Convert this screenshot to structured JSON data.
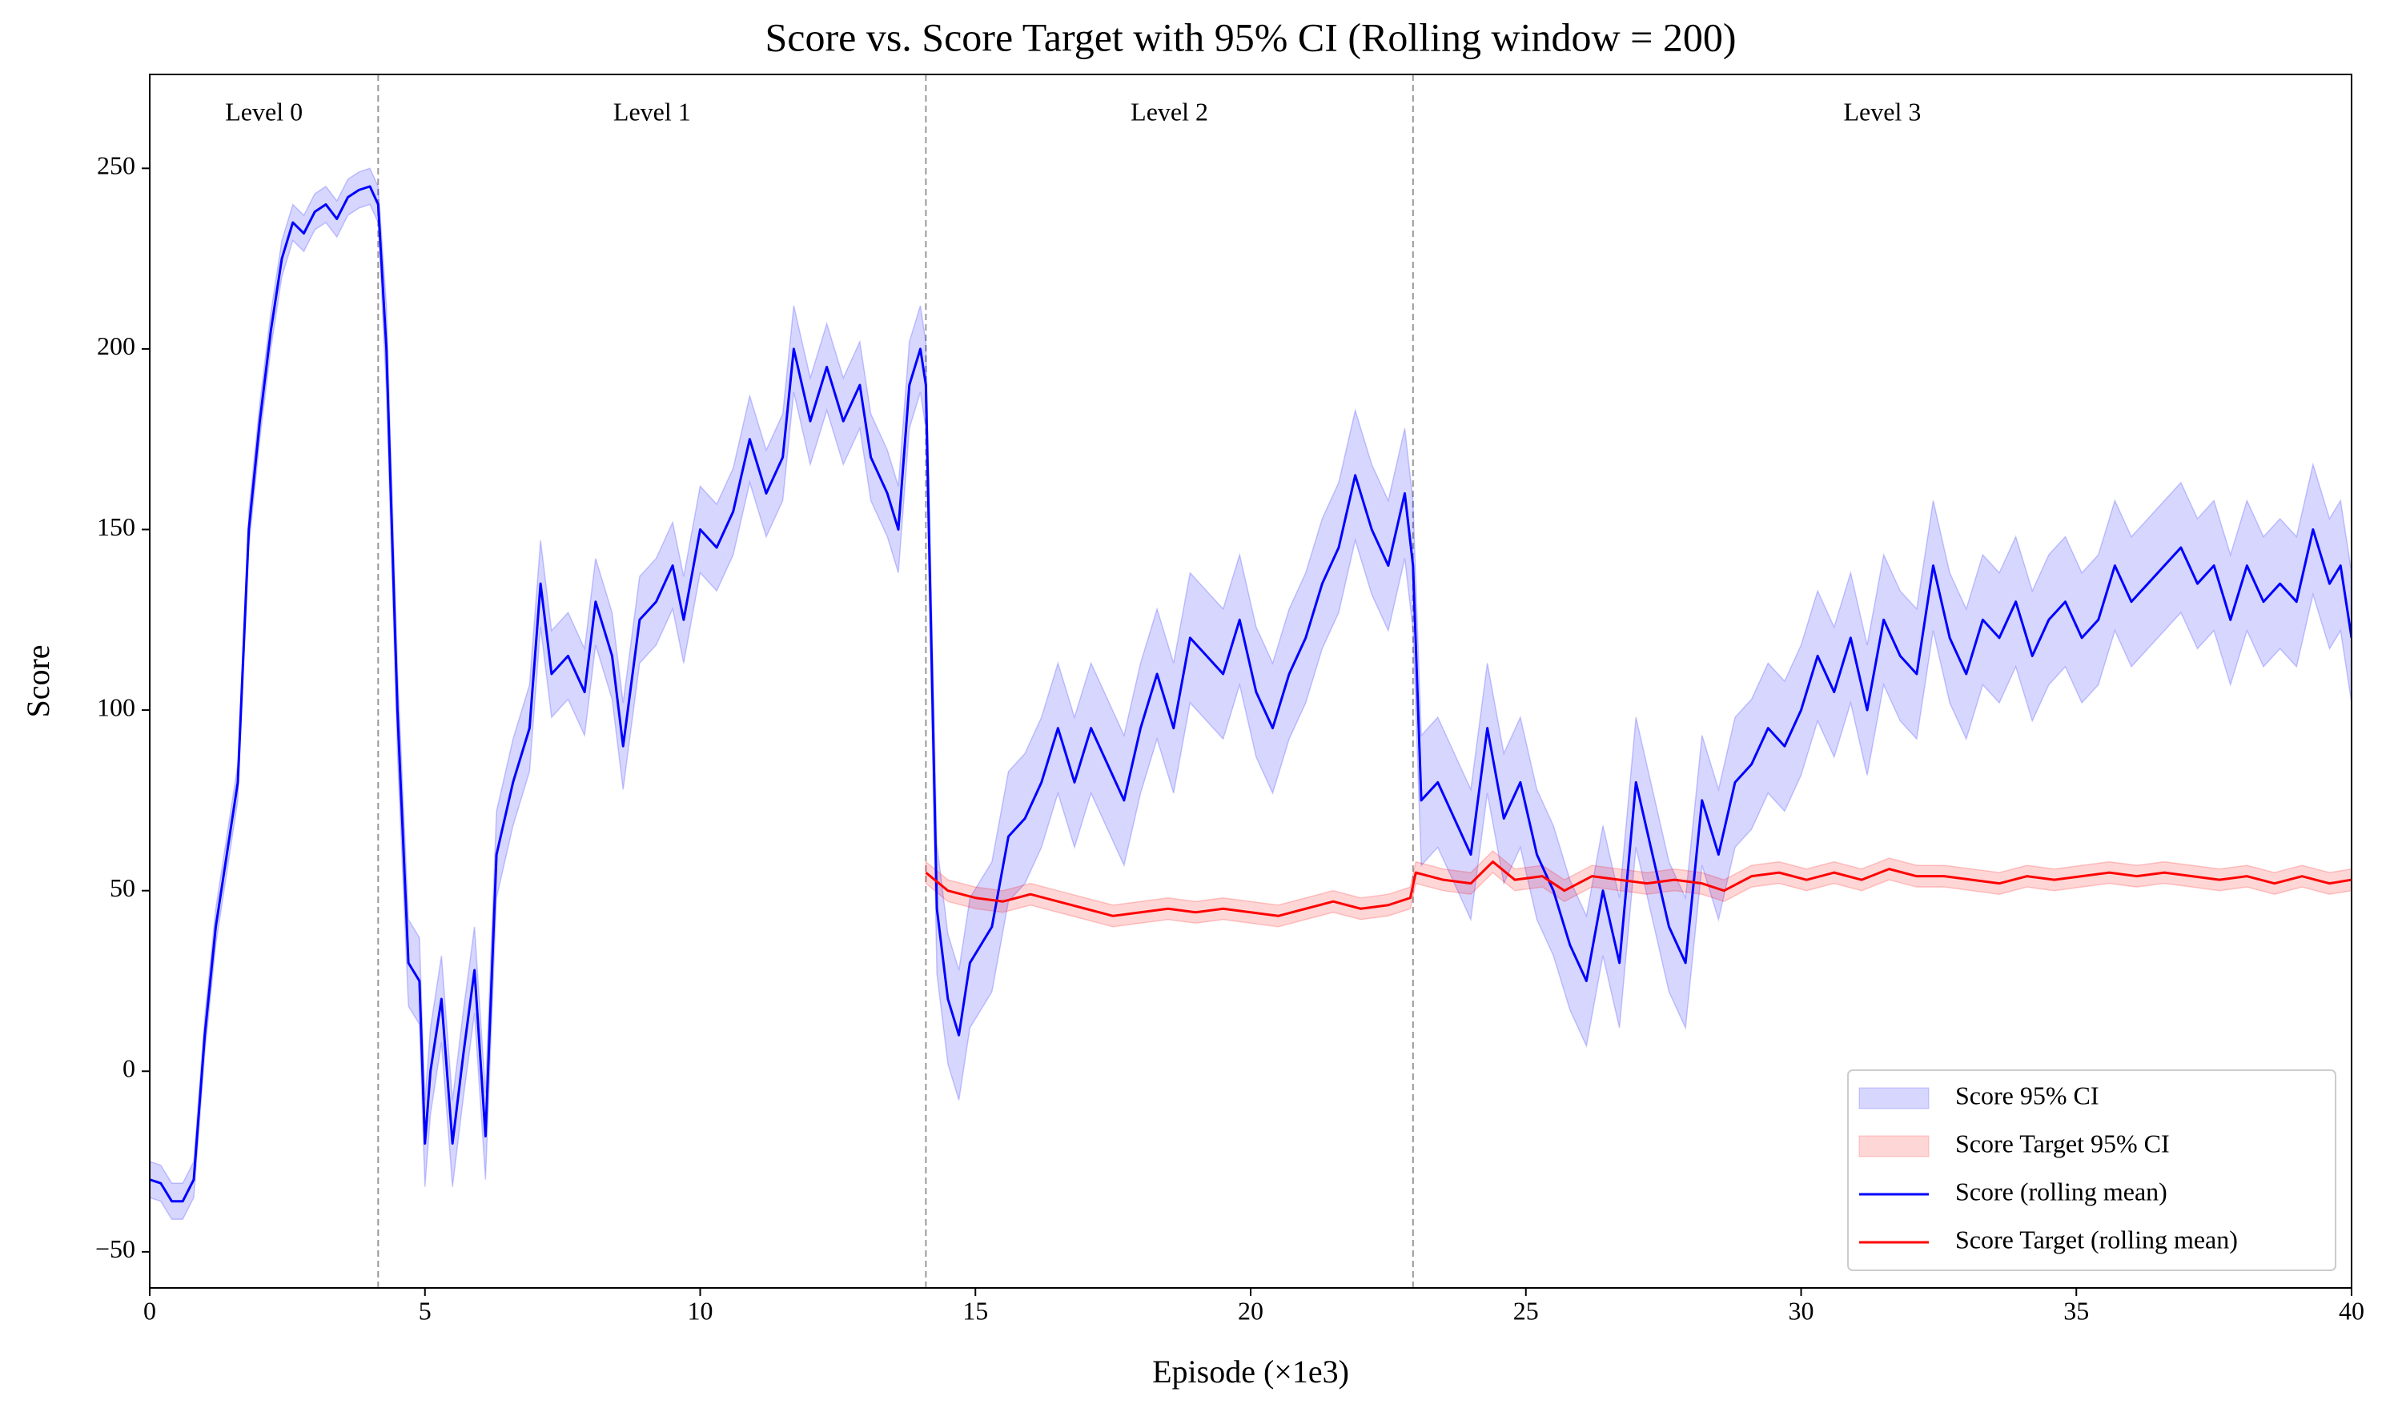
{
  "chart_data": {
    "type": "line",
    "title": "Score vs. Score Target with 95% CI (Rolling window = 200)",
    "xlabel": "Episode (×1e3)",
    "ylabel": "Score",
    "xlim": [
      0,
      40
    ],
    "ylim": [
      -60,
      276
    ],
    "xticks": [
      0,
      5,
      10,
      15,
      20,
      25,
      30,
      35,
      40
    ],
    "yticks": [
      {
        "value": -50,
        "label": "−50"
      },
      0,
      50,
      100,
      150,
      200,
      250
    ],
    "grid": false,
    "legend_loc": "lower right",
    "level_boundaries": [
      4.15,
      14.1,
      22.95
    ],
    "level_labels": [
      "Level 0",
      "Level 1",
      "Level 2",
      "Level 3"
    ],
    "series": [
      {
        "name": "Score (rolling mean)",
        "color": "#0000ff",
        "ci_name": "Score 95% CI",
        "ci_color": "#0000ff",
        "x": [
          0,
          0.2,
          0.4,
          0.6,
          0.8,
          1.0,
          1.2,
          1.4,
          1.6,
          1.8,
          2.0,
          2.2,
          2.4,
          2.6,
          2.8,
          3.0,
          3.2,
          3.4,
          3.6,
          3.8,
          4.0,
          4.15,
          4.3,
          4.5,
          4.7,
          4.9,
          5.0,
          5.1,
          5.3,
          5.5,
          5.7,
          5.9,
          6.1,
          6.3,
          6.6,
          6.9,
          7.1,
          7.3,
          7.6,
          7.9,
          8.1,
          8.4,
          8.6,
          8.9,
          9.2,
          9.5,
          9.7,
          10.0,
          10.3,
          10.6,
          10.9,
          11.2,
          11.5,
          11.7,
          12.0,
          12.3,
          12.6,
          12.9,
          13.1,
          13.4,
          13.6,
          13.8,
          14.0,
          14.1,
          14.3,
          14.5,
          14.7,
          14.9,
          15.1,
          15.3,
          15.6,
          15.9,
          16.2,
          16.5,
          16.8,
          17.1,
          17.4,
          17.7,
          18.0,
          18.3,
          18.6,
          18.9,
          19.2,
          19.5,
          19.8,
          20.1,
          20.4,
          20.7,
          21.0,
          21.3,
          21.6,
          21.9,
          22.2,
          22.5,
          22.8,
          22.95,
          23.1,
          23.4,
          23.7,
          24.0,
          24.3,
          24.6,
          24.9,
          25.2,
          25.5,
          25.8,
          26.1,
          26.4,
          26.7,
          27.0,
          27.3,
          27.6,
          27.9,
          28.2,
          28.5,
          28.8,
          29.1,
          29.4,
          29.7,
          30.0,
          30.3,
          30.6,
          30.9,
          31.2,
          31.5,
          31.8,
          32.1,
          32.4,
          32.7,
          33.0,
          33.3,
          33.6,
          33.9,
          34.2,
          34.5,
          34.8,
          35.1,
          35.4,
          35.7,
          36.0,
          36.3,
          36.6,
          36.9,
          37.2,
          37.5,
          37.8,
          38.1,
          38.4,
          38.7,
          39.0,
          39.3,
          39.6,
          39.8,
          40
        ],
        "values": [
          -30,
          -31,
          -36,
          -36,
          -30,
          10,
          40,
          60,
          80,
          150,
          180,
          205,
          225,
          235,
          232,
          238,
          240,
          236,
          242,
          244,
          245,
          240,
          200,
          100,
          30,
          25,
          -20,
          0,
          20,
          -20,
          5,
          28,
          -18,
          60,
          80,
          95,
          135,
          110,
          115,
          105,
          130,
          115,
          90,
          125,
          130,
          140,
          125,
          150,
          145,
          155,
          175,
          160,
          170,
          200,
          180,
          195,
          180,
          190,
          170,
          160,
          150,
          190,
          200,
          190,
          45,
          20,
          10,
          30,
          35,
          40,
          65,
          70,
          80,
          95,
          80,
          95,
          85,
          75,
          95,
          110,
          95,
          120,
          115,
          110,
          125,
          105,
          95,
          110,
          120,
          135,
          145,
          165,
          150,
          140,
          160,
          140,
          75,
          80,
          70,
          60,
          95,
          70,
          80,
          60,
          50,
          35,
          25,
          50,
          30,
          80,
          60,
          40,
          30,
          75,
          60,
          80,
          85,
          95,
          90,
          100,
          115,
          105,
          120,
          100,
          125,
          115,
          110,
          140,
          120,
          110,
          125,
          120,
          130,
          115,
          125,
          130,
          120,
          125,
          140,
          130,
          135,
          140,
          145,
          135,
          140,
          125,
          140,
          130,
          135,
          130,
          150,
          135,
          140,
          120
        ],
        "ci_lower": [
          -35,
          -36,
          -41,
          -41,
          -35,
          5,
          35,
          55,
          75,
          145,
          175,
          200,
          220,
          230,
          227,
          233,
          235,
          231,
          237,
          239,
          240,
          235,
          188,
          88,
          18,
          13,
          -32,
          -12,
          8,
          -32,
          -7,
          16,
          -30,
          48,
          68,
          83,
          123,
          98,
          103,
          93,
          118,
          103,
          78,
          113,
          118,
          128,
          113,
          138,
          133,
          143,
          163,
          148,
          158,
          188,
          168,
          183,
          168,
          178,
          158,
          148,
          138,
          178,
          188,
          178,
          27,
          2,
          -8,
          12,
          17,
          22,
          47,
          52,
          62,
          77,
          62,
          77,
          67,
          57,
          77,
          92,
          77,
          102,
          97,
          92,
          107,
          87,
          77,
          92,
          102,
          117,
          127,
          147,
          132,
          122,
          142,
          122,
          57,
          62,
          52,
          42,
          77,
          52,
          62,
          42,
          32,
          17,
          7,
          32,
          12,
          62,
          42,
          22,
          12,
          57,
          42,
          62,
          67,
          77,
          72,
          82,
          97,
          87,
          102,
          82,
          107,
          97,
          92,
          122,
          102,
          92,
          107,
          102,
          112,
          97,
          107,
          112,
          102,
          107,
          122,
          112,
          117,
          122,
          127,
          117,
          122,
          107,
          122,
          112,
          117,
          112,
          132,
          117,
          122,
          102
        ],
        "ci_upper": [
          -25,
          -26,
          -31,
          -31,
          -25,
          15,
          45,
          65,
          85,
          155,
          185,
          210,
          230,
          240,
          237,
          243,
          245,
          241,
          247,
          249,
          250,
          245,
          212,
          112,
          42,
          37,
          -8,
          12,
          32,
          -8,
          17,
          40,
          -6,
          72,
          92,
          107,
          147,
          122,
          127,
          117,
          142,
          127,
          102,
          137,
          142,
          152,
          137,
          162,
          157,
          167,
          187,
          172,
          182,
          212,
          192,
          207,
          192,
          202,
          182,
          172,
          162,
          202,
          212,
          202,
          63,
          38,
          28,
          48,
          53,
          58,
          83,
          88,
          98,
          113,
          98,
          113,
          103,
          93,
          113,
          128,
          113,
          138,
          133,
          128,
          143,
          123,
          113,
          128,
          138,
          153,
          163,
          183,
          168,
          158,
          178,
          158,
          93,
          98,
          88,
          78,
          113,
          88,
          98,
          78,
          68,
          53,
          43,
          68,
          48,
          98,
          78,
          58,
          48,
          93,
          78,
          98,
          103,
          113,
          108,
          118,
          133,
          123,
          138,
          118,
          143,
          133,
          128,
          158,
          138,
          128,
          143,
          138,
          148,
          133,
          143,
          148,
          138,
          143,
          158,
          148,
          153,
          158,
          163,
          153,
          158,
          143,
          158,
          148,
          153,
          148,
          168,
          153,
          158,
          138
        ]
      },
      {
        "name": "Score Target (rolling mean)",
        "color": "#ff0000",
        "ci_name": "Score Target 95% CI",
        "ci_color": "#ff0000",
        "x": [
          14.1,
          14.5,
          15,
          15.5,
          16,
          16.5,
          17,
          17.5,
          18,
          18.5,
          19,
          19.5,
          20,
          20.5,
          21,
          21.5,
          22,
          22.5,
          22.9,
          23.0,
          23.5,
          24,
          24.4,
          24.8,
          25.3,
          25.7,
          26.2,
          26.7,
          27.2,
          27.7,
          28.2,
          28.6,
          29.1,
          29.6,
          30.1,
          30.6,
          31.1,
          31.6,
          32.1,
          32.6,
          33.1,
          33.6,
          34.1,
          34.6,
          35.1,
          35.6,
          36.1,
          36.6,
          37.1,
          37.6,
          38.1,
          38.6,
          39.1,
          39.6,
          40
        ],
        "values": [
          55,
          50,
          48,
          47,
          49,
          47,
          45,
          43,
          44,
          45,
          44,
          45,
          44,
          43,
          45,
          47,
          45,
          46,
          48,
          55,
          53,
          52,
          58,
          53,
          54,
          50,
          54,
          53,
          52,
          53,
          52,
          50,
          54,
          55,
          53,
          55,
          53,
          56,
          54,
          54,
          53,
          52,
          54,
          53,
          54,
          55,
          54,
          55,
          54,
          53,
          54,
          52,
          54,
          52,
          53
        ],
        "ci_lower": [
          52,
          47,
          45,
          44,
          46,
          44,
          42,
          40,
          41,
          42,
          41,
          42,
          41,
          40,
          42,
          44,
          42,
          43,
          45,
          52,
          50,
          49,
          55,
          50,
          51,
          47,
          51,
          50,
          49,
          50,
          49,
          47,
          51,
          52,
          50,
          52,
          50,
          53,
          51,
          51,
          50,
          49,
          51,
          50,
          51,
          52,
          51,
          52,
          51,
          50,
          51,
          49,
          51,
          49,
          50
        ],
        "ci_upper": [
          58,
          53,
          51,
          50,
          52,
          50,
          48,
          46,
          47,
          48,
          47,
          48,
          47,
          46,
          48,
          50,
          48,
          49,
          51,
          58,
          56,
          55,
          61,
          56,
          57,
          53,
          57,
          56,
          55,
          56,
          55,
          53,
          57,
          58,
          56,
          58,
          56,
          59,
          57,
          57,
          56,
          55,
          57,
          56,
          57,
          58,
          57,
          58,
          57,
          56,
          57,
          55,
          57,
          55,
          56
        ]
      }
    ]
  }
}
